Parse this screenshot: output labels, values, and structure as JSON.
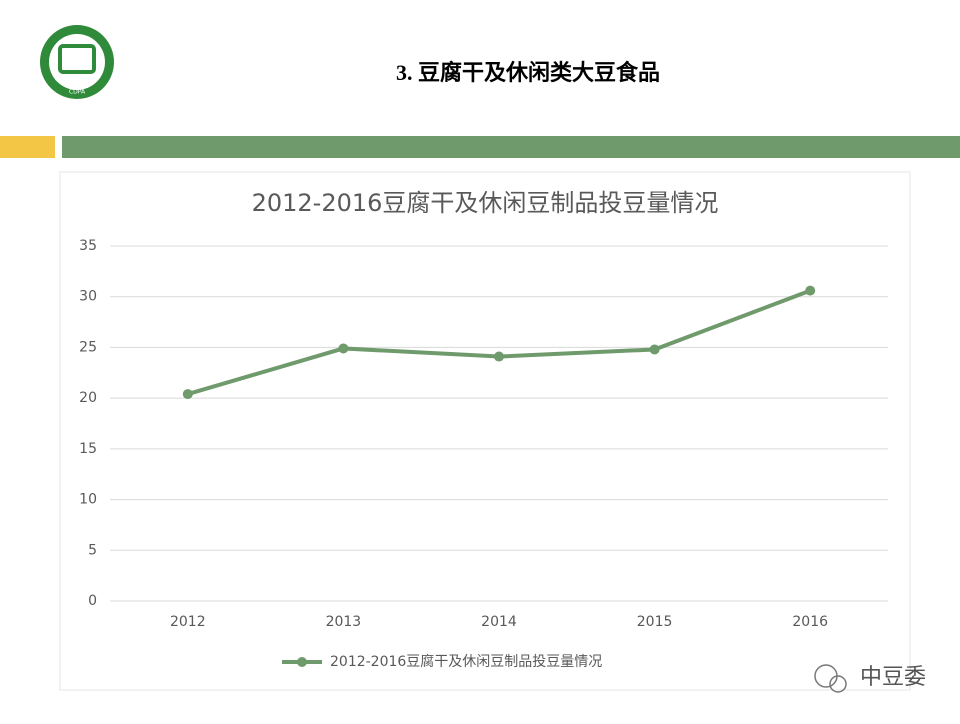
{
  "slide": {
    "title": "3. 豆腐干及休闲类大豆食品",
    "logo": "CDPA",
    "watermark": "中豆委"
  },
  "chart_data": {
    "type": "line",
    "title": "2012-2016豆腐干及休闲豆制品投豆量情况",
    "categories": [
      "2012",
      "2013",
      "2014",
      "2015",
      "2016"
    ],
    "series": [
      {
        "name": "2012-2016豆腐干及休闲豆制品投豆量情况",
        "color": "#6f9a6c",
        "values": [
          20.4,
          24.9,
          24.1,
          24.8,
          30.6
        ]
      }
    ],
    "ylim": [
      0,
      35
    ],
    "yticks": [
      0,
      5,
      10,
      15,
      20,
      25,
      30,
      35
    ],
    "grid": true,
    "legend": "bottom"
  }
}
